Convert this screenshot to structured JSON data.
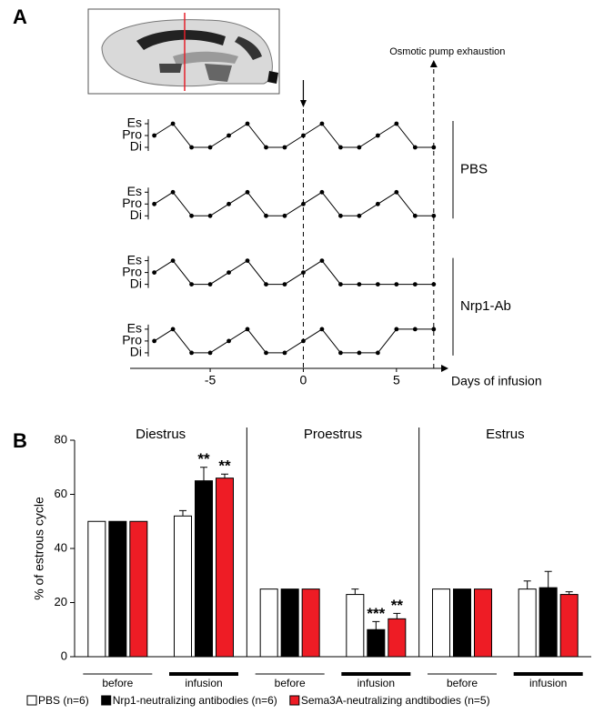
{
  "chart_data": [
    {
      "type": "line",
      "panel": "A",
      "x": [
        -8,
        -7,
        -6,
        -5,
        -4,
        -3,
        -2,
        -1,
        0,
        1,
        2,
        3,
        4,
        5,
        6,
        7
      ],
      "series": [
        {
          "color": "#000000",
          "values": [
            1,
            2,
            0,
            0,
            1,
            2,
            0,
            0,
            1,
            2,
            0,
            0,
            1,
            2,
            0,
            0
          ]
        },
        {
          "color": "#000000",
          "values": [
            1,
            2,
            0,
            0,
            1,
            2,
            0,
            0,
            1,
            2,
            0,
            0,
            1,
            2,
            0,
            0
          ]
        },
        {
          "color": "#000000",
          "values": [
            1,
            2,
            0,
            0,
            1,
            2,
            0,
            0,
            1,
            2,
            0,
            0,
            0,
            0,
            0,
            0
          ]
        },
        {
          "color": "#000000",
          "values": [
            1,
            2,
            0,
            0,
            1,
            2,
            0,
            0,
            1,
            2,
            0,
            0,
            0,
            2,
            2,
            2
          ]
        }
      ],
      "group_labels": [
        "PBS",
        "Nrp1-Ab"
      ],
      "xlim": [
        -9.3,
        7.4
      ],
      "xticks": [
        -5,
        0,
        5
      ],
      "xlabel": "Days of infusion",
      "ylim": [
        0,
        2
      ],
      "yticks": [
        {
          "value": 0,
          "label": "Di"
        },
        {
          "value": 1,
          "label": "Pro"
        },
        {
          "value": 2,
          "label": "Es"
        }
      ],
      "markers": [
        {
          "x": 0
        },
        {
          "x": 7,
          "label": "Osmotic pump exhaustion"
        }
      ]
    },
    {
      "type": "bar",
      "panel": "B",
      "sections": [
        "Diestrus",
        "Proestrus",
        "Estrus"
      ],
      "categories": [
        "before",
        "infusion",
        "before",
        "infusion",
        "before",
        "infusion"
      ],
      "series": [
        {
          "name": "PBS (n=6)",
          "color": "#ffffff",
          "values": [
            50,
            52,
            25,
            23,
            25,
            25
          ],
          "errors": [
            null,
            2,
            null,
            2,
            null,
            3
          ],
          "annotations": [
            null,
            null,
            null,
            null,
            null,
            null
          ]
        },
        {
          "name": "Nrp1-neutralizing antibodies (n=6)",
          "color": "#000000",
          "values": [
            50,
            65,
            25,
            10,
            25,
            25.5
          ],
          "errors": [
            null,
            5,
            null,
            3,
            null,
            6
          ],
          "annotations": [
            null,
            "**",
            null,
            "***",
            null,
            null
          ]
        },
        {
          "name": "Sema3A-neutralizing andtibodies (n=5)",
          "color": "#ee1c25",
          "values": [
            50,
            66,
            25,
            14,
            25,
            23
          ],
          "errors": [
            null,
            1.5,
            null,
            2,
            null,
            1
          ],
          "annotations": [
            null,
            "**",
            null,
            "**",
            null,
            null
          ]
        }
      ],
      "ylabel": "% of estrous cycle",
      "ylim": [
        0,
        80
      ],
      "yticks": [
        0,
        20,
        40,
        60,
        80
      ]
    }
  ]
}
